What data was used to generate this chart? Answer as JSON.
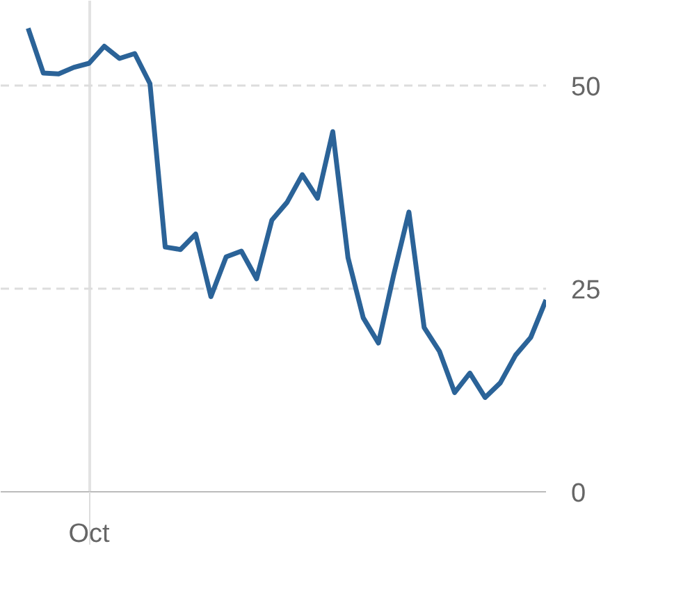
{
  "chart_data": {
    "type": "line",
    "categories": [
      null,
      null,
      null,
      null,
      "Oct",
      null,
      null,
      null,
      null,
      null,
      null,
      null,
      null,
      null,
      null,
      null,
      null,
      null,
      null,
      null,
      null,
      null,
      null,
      null,
      null,
      null,
      null,
      null,
      null,
      null,
      null,
      null,
      null,
      null,
      null
    ],
    "series": [
      {
        "color": "#2b6398",
        "values": [
          57,
          51.5,
          51.4,
          52.2,
          52.7,
          54.8,
          53.3,
          53.9,
          50.2,
          30.1,
          29.8,
          31.7,
          24,
          28.9,
          29.6,
          26.2,
          33.4,
          35.6,
          39,
          36.1,
          44.3,
          28.8,
          21.4,
          18.3,
          26.7,
          34.4,
          20.2,
          17.3,
          12.2,
          14.6,
          11.6,
          13.4,
          16.8,
          19,
          23.6
        ]
      }
    ],
    "ylim": [
      0,
      60.4
    ],
    "yticks": [
      0,
      25,
      50
    ],
    "grid": true,
    "marker": "none",
    "line_style": "solid"
  }
}
